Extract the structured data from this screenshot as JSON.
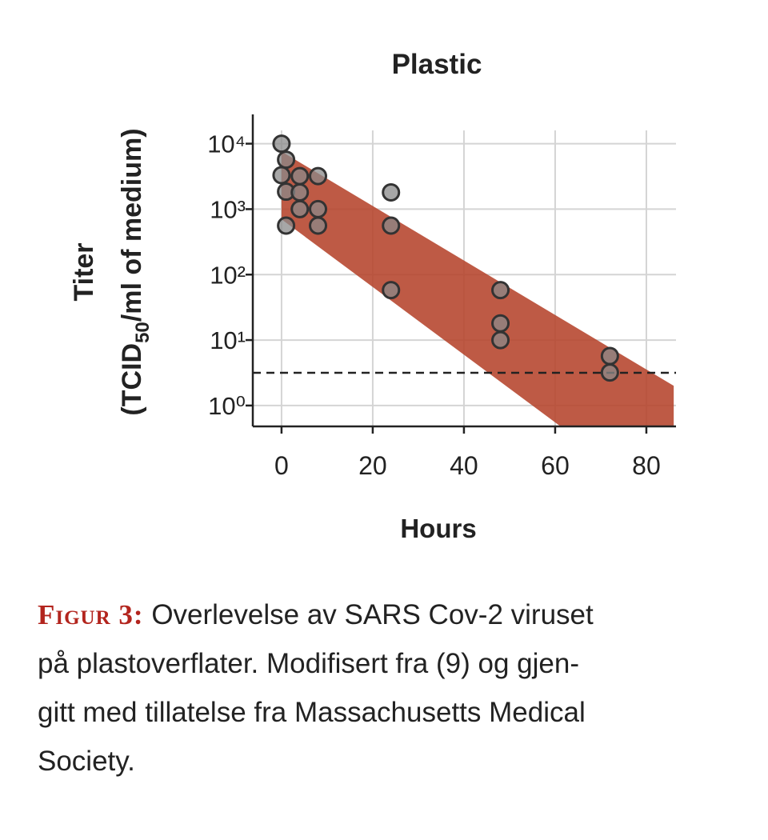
{
  "chart_data": {
    "type": "scatter",
    "title": "Plastic",
    "xlabel": "Hours",
    "ylabel": {
      "line1": "Titer",
      "line2": [
        "(TCID",
        "50",
        "/ml of medium)"
      ]
    },
    "log_y": true,
    "grid": true,
    "xlim": [
      -6.3,
      86.5
    ],
    "xticks": [
      0,
      20,
      40,
      60,
      80
    ],
    "ylim": [
      0.48,
      28000
    ],
    "yticks": [
      {
        "value": 1,
        "label": "10⁰"
      },
      {
        "value": 10,
        "label": "10¹"
      },
      {
        "value": 100,
        "label": "10²"
      },
      {
        "value": 1000,
        "label": "10³"
      },
      {
        "value": 10000,
        "label": "10⁴"
      }
    ],
    "threshold": 3.16,
    "band": {
      "color": "#b5432b",
      "x": [
        0,
        86
      ],
      "upper": [
        7600,
        2
      ],
      "lower": [
        700,
        0.025
      ]
    },
    "series": [
      {
        "color": "#8a8a8a",
        "x": [
          0,
          1,
          0,
          1,
          4,
          4,
          1,
          4,
          8,
          8,
          8,
          24,
          24,
          24,
          48,
          48,
          48,
          72,
          72
        ],
        "values": [
          10000,
          5700,
          3300,
          1850,
          3200,
          1800,
          560,
          1000,
          3200,
          1000,
          560,
          1800,
          560,
          58,
          58,
          18,
          10,
          5.7,
          3.2
        ]
      }
    ]
  },
  "caption": {
    "label": "Figur 3:",
    "lines": [
      "Overlevelse av SARS Cov-2 viruset",
      "på plastoverflater. Modifisert fra (9) og gjen-",
      "gitt med tillatelse fra Massachusetts Medical",
      "Society."
    ]
  }
}
